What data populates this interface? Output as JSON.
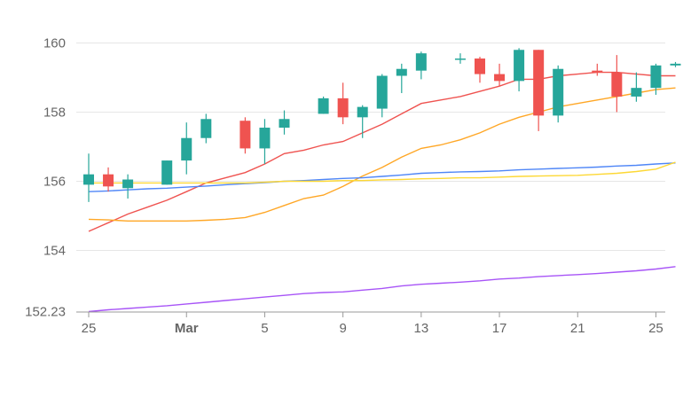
{
  "chart_data": {
    "type": "candlestick",
    "x_ticks": [
      "25",
      "Mar",
      "5",
      "9",
      "13",
      "17",
      "21",
      "25"
    ],
    "y_ticks": [
      {
        "value": 152.23,
        "label": "152.23"
      },
      {
        "value": 154,
        "label": "154"
      },
      {
        "value": 156,
        "label": "156"
      },
      {
        "value": 158,
        "label": "158"
      },
      {
        "value": 160,
        "label": "160"
      }
    ],
    "ylim": [
      152.23,
      160.4
    ],
    "grid": true,
    "colors": {
      "up": "#26a69a",
      "down": "#ef5350"
    },
    "dates": [
      "Feb 25",
      "Feb 26",
      "Feb 27",
      "Feb 28",
      "Feb 29",
      "Mar 1",
      "Mar 2",
      "Mar 3",
      "Mar 4",
      "Mar 5",
      "Mar 6",
      "Mar 7",
      "Mar 8",
      "Mar 9",
      "Mar 10",
      "Mar 11",
      "Mar 12",
      "Mar 13",
      "Mar 14",
      "Mar 15",
      "Mar 16",
      "Mar 17",
      "Mar 18",
      "Mar 19",
      "Mar 20",
      "Mar 21",
      "Mar 22",
      "Mar 23",
      "Mar 24",
      "Mar 25",
      "Mar 26"
    ],
    "candles": [
      {
        "date": "Feb 25",
        "open": 155.9,
        "high": 156.8,
        "low": 155.4,
        "close": 156.2
      },
      {
        "date": "Feb 26",
        "open": 156.2,
        "high": 156.4,
        "low": 155.7,
        "close": 155.85
      },
      {
        "date": "Feb 27",
        "open": 155.8,
        "high": 156.2,
        "low": 155.5,
        "close": 156.05
      },
      null,
      {
        "date": "Feb 29",
        "open": 155.9,
        "high": 156.6,
        "low": 155.9,
        "close": 156.6
      },
      {
        "date": "Mar 1",
        "open": 156.6,
        "high": 157.7,
        "low": 156.2,
        "close": 157.25
      },
      {
        "date": "Mar 2",
        "open": 157.25,
        "high": 157.95,
        "low": 157.1,
        "close": 157.8
      },
      null,
      {
        "date": "Mar 4",
        "open": 157.75,
        "high": 157.85,
        "low": 156.8,
        "close": 156.95
      },
      {
        "date": "Mar 5",
        "open": 156.95,
        "high": 157.8,
        "low": 156.5,
        "close": 157.55
      },
      {
        "date": "Mar 6",
        "open": 157.55,
        "high": 158.05,
        "low": 157.35,
        "close": 157.8
      },
      null,
      {
        "date": "Mar 8",
        "open": 157.95,
        "high": 158.45,
        "low": 157.95,
        "close": 158.4
      },
      {
        "date": "Mar 9",
        "open": 158.4,
        "high": 158.85,
        "low": 157.65,
        "close": 157.85
      },
      {
        "date": "Mar 10",
        "open": 157.85,
        "high": 158.2,
        "low": 157.25,
        "close": 158.15
      },
      {
        "date": "Mar 11",
        "open": 158.1,
        "high": 159.1,
        "low": 157.85,
        "close": 159.05
      },
      {
        "date": "Mar 12",
        "open": 159.05,
        "high": 159.4,
        "low": 158.55,
        "close": 159.25
      },
      {
        "date": "Mar 13",
        "open": 159.2,
        "high": 159.75,
        "low": 158.95,
        "close": 159.7
      },
      null,
      {
        "date": "Mar 15",
        "open": 159.55,
        "high": 159.7,
        "low": 159.4,
        "close": 159.55
      },
      {
        "date": "Mar 16",
        "open": 159.55,
        "high": 159.6,
        "low": 158.85,
        "close": 159.1
      },
      {
        "date": "Mar 17",
        "open": 159.1,
        "high": 159.4,
        "low": 158.75,
        "close": 158.9
      },
      {
        "date": "Mar 18",
        "open": 158.9,
        "high": 159.85,
        "low": 158.6,
        "close": 159.8
      },
      {
        "date": "Mar 19",
        "open": 159.8,
        "high": 159.8,
        "low": 157.45,
        "close": 157.9
      },
      {
        "date": "Mar 20",
        "open": 157.9,
        "high": 159.35,
        "low": 157.7,
        "close": 159.25
      },
      null,
      {
        "date": "Mar 22",
        "open": 159.2,
        "high": 159.4,
        "low": 159.05,
        "close": 159.15
      },
      {
        "date": "Mar 23",
        "open": 159.15,
        "high": 159.65,
        "low": 158.0,
        "close": 158.45
      },
      {
        "date": "Mar 24",
        "open": 158.45,
        "high": 159.15,
        "low": 158.3,
        "close": 158.7
      },
      {
        "date": "Mar 25",
        "open": 158.7,
        "high": 159.4,
        "low": 158.5,
        "close": 159.35
      },
      {
        "date": "Mar 26",
        "open": 159.35,
        "high": 159.45,
        "low": 159.3,
        "close": 159.4
      }
    ],
    "series": [
      {
        "color": "#ef5350",
        "values": [
          154.55,
          154.8,
          155.05,
          155.25,
          155.45,
          155.7,
          155.95,
          156.1,
          156.25,
          156.5,
          156.8,
          156.9,
          157.05,
          157.15,
          157.4,
          157.65,
          157.95,
          158.25,
          158.35,
          158.45,
          158.6,
          158.75,
          158.95,
          158.95,
          159.05,
          159.1,
          159.15,
          159.15,
          159.1,
          159.05,
          159.05
        ]
      },
      {
        "color": "#ffa726",
        "values": [
          154.9,
          154.88,
          154.85,
          154.85,
          154.85,
          154.85,
          154.87,
          154.9,
          154.95,
          155.1,
          155.3,
          155.5,
          155.6,
          155.85,
          156.15,
          156.4,
          156.7,
          156.95,
          157.05,
          157.2,
          157.4,
          157.65,
          157.85,
          158.0,
          158.15,
          158.25,
          158.35,
          158.45,
          158.55,
          158.65,
          158.7
        ]
      },
      {
        "color": "#4f86f7",
        "values": [
          155.7,
          155.72,
          155.75,
          155.78,
          155.8,
          155.83,
          155.86,
          155.9,
          155.93,
          155.96,
          156.0,
          156.02,
          156.05,
          156.08,
          156.1,
          156.14,
          156.18,
          156.23,
          156.25,
          156.27,
          156.28,
          156.3,
          156.33,
          156.35,
          156.37,
          156.39,
          156.41,
          156.44,
          156.46,
          156.5,
          156.53
        ]
      },
      {
        "color": "#fdd835",
        "values": [
          155.95,
          155.95,
          155.95,
          155.95,
          155.95,
          155.95,
          155.95,
          155.95,
          155.95,
          155.97,
          156.0,
          156.0,
          156.0,
          156.02,
          156.02,
          156.04,
          156.05,
          156.07,
          156.08,
          156.1,
          156.1,
          156.12,
          156.14,
          156.15,
          156.16,
          156.17,
          156.2,
          156.23,
          156.28,
          156.35,
          156.55
        ]
      },
      {
        "color": "#a855f7",
        "values": [
          152.23,
          152.28,
          152.32,
          152.36,
          152.4,
          152.45,
          152.5,
          152.55,
          152.6,
          152.65,
          152.7,
          152.75,
          152.78,
          152.8,
          152.85,
          152.9,
          152.97,
          153.02,
          153.05,
          153.08,
          153.12,
          153.17,
          153.2,
          153.24,
          153.27,
          153.3,
          153.33,
          153.37,
          153.41,
          153.46,
          153.53
        ]
      }
    ]
  }
}
